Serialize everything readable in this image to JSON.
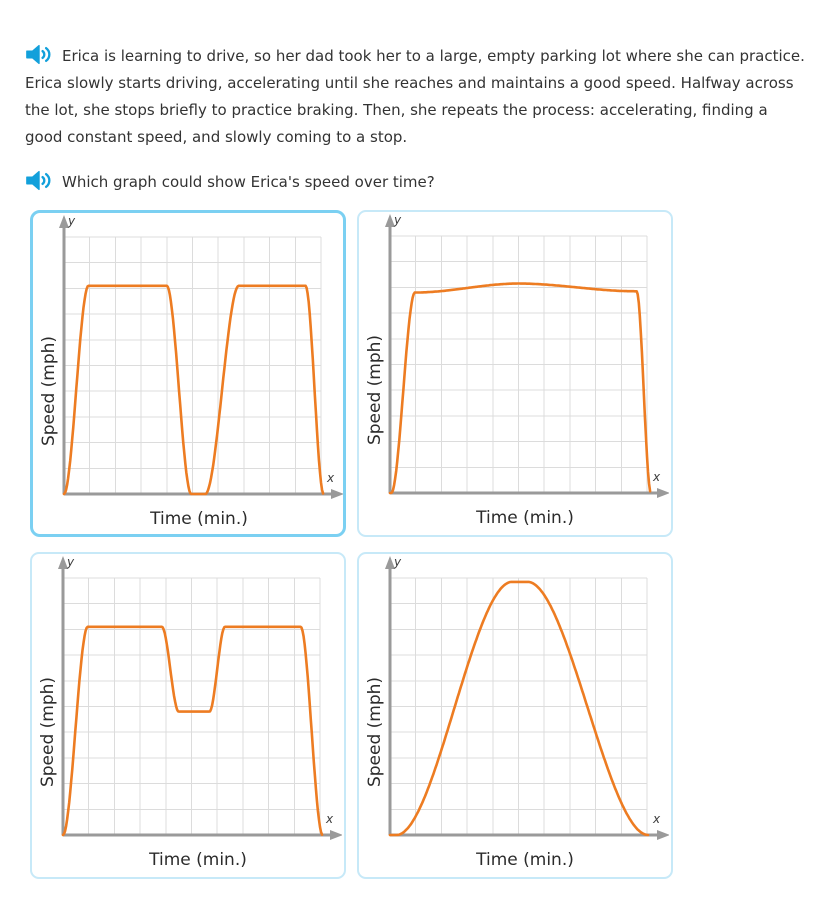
{
  "colors": {
    "text": "#333333",
    "curve": "#ED7C22",
    "axis": "#9A9A9A",
    "grid": "#DCDCDC",
    "selectedBorder": "#7BD0F2",
    "cardBorder": "#C7E9F8",
    "speaker": "#12A0DB"
  },
  "prompt": {
    "audio_icon": "speaker-icon",
    "text": "Erica is learning to drive, so her dad took her to a large, empty parking lot where she can practice. Erica slowly starts driving, accelerating until she reaches and maintains a good speed. Halfway across the lot, she stops briefly to practice braking. Then, she repeats the process: accelerating, finding a good constant speed, and slowly coming to a stop."
  },
  "question": {
    "audio_icon": "speaker-icon",
    "text": "Which graph could show Erica's speed over time?"
  },
  "chart_data": [
    {
      "type": "line",
      "selected": true,
      "xlabel": "Time (min.)",
      "ylabel": "Speed (mph)",
      "x_axis_letter": "x",
      "y_axis_letter": "y",
      "axis_ticks": "none",
      "grid": true,
      "x_units": [
        0,
        10
      ],
      "y_units": [
        0,
        10
      ],
      "description": "Speed rises to a constant level, drops back to zero halfway through, rises to the same constant level again, then drops to zero at the end (two flat-topped bumps).",
      "transitions": [
        [
          0,
          0.95,
          8.1
        ],
        [
          4.0,
          4.95,
          0
        ],
        [
          5.5,
          6.8,
          8.1
        ],
        [
          9.4,
          10.1,
          0
        ]
      ]
    },
    {
      "type": "line",
      "selected": false,
      "xlabel": "Time (min.)",
      "ylabel": "Speed (mph)",
      "x_axis_letter": "x",
      "y_axis_letter": "y",
      "axis_ticks": "none",
      "grid": true,
      "x_units": [
        0,
        10
      ],
      "y_units": [
        0,
        10
      ],
      "description": "Speed rises quickly to one constant level, stays there for almost the whole time, then drops sharply to zero at the end (single wide flat-topped bump).",
      "transitions": [
        [
          0.05,
          0.97,
          7.8
        ],
        [
          0.97,
          5.0,
          8.15
        ],
        [
          5.0,
          9.55,
          7.85
        ],
        [
          9.6,
          10.15,
          0
        ]
      ]
    },
    {
      "type": "line",
      "selected": false,
      "xlabel": "Time (min.)",
      "ylabel": "Speed (mph)",
      "x_axis_letter": "x",
      "y_axis_letter": "y",
      "axis_ticks": "none",
      "grid": true,
      "x_units": [
        0,
        10
      ],
      "y_units": [
        0,
        10
      ],
      "description": "Speed rises to a constant level, dips to a slower non-zero speed in the middle, returns to the constant level, then drops to zero (M shape with a shallow middle dip).",
      "transitions": [
        [
          0,
          0.96,
          8.1
        ],
        [
          3.85,
          4.5,
          4.8
        ],
        [
          5.7,
          6.3,
          8.1
        ],
        [
          9.25,
          10.1,
          0
        ]
      ]
    },
    {
      "type": "line",
      "selected": false,
      "xlabel": "Time (min.)",
      "ylabel": "Speed (mph)",
      "x_axis_letter": "x",
      "y_axis_letter": "y",
      "axis_ticks": "none",
      "grid": true,
      "x_units": [
        0,
        10
      ],
      "y_units": [
        0,
        10
      ],
      "description": "Speed rises smoothly to a single rounded peak in the middle and falls smoothly back to zero (bell curve).",
      "transitions": [
        [
          0.25,
          4.75,
          9.85
        ],
        [
          5.35,
          10.05,
          0
        ]
      ]
    }
  ]
}
